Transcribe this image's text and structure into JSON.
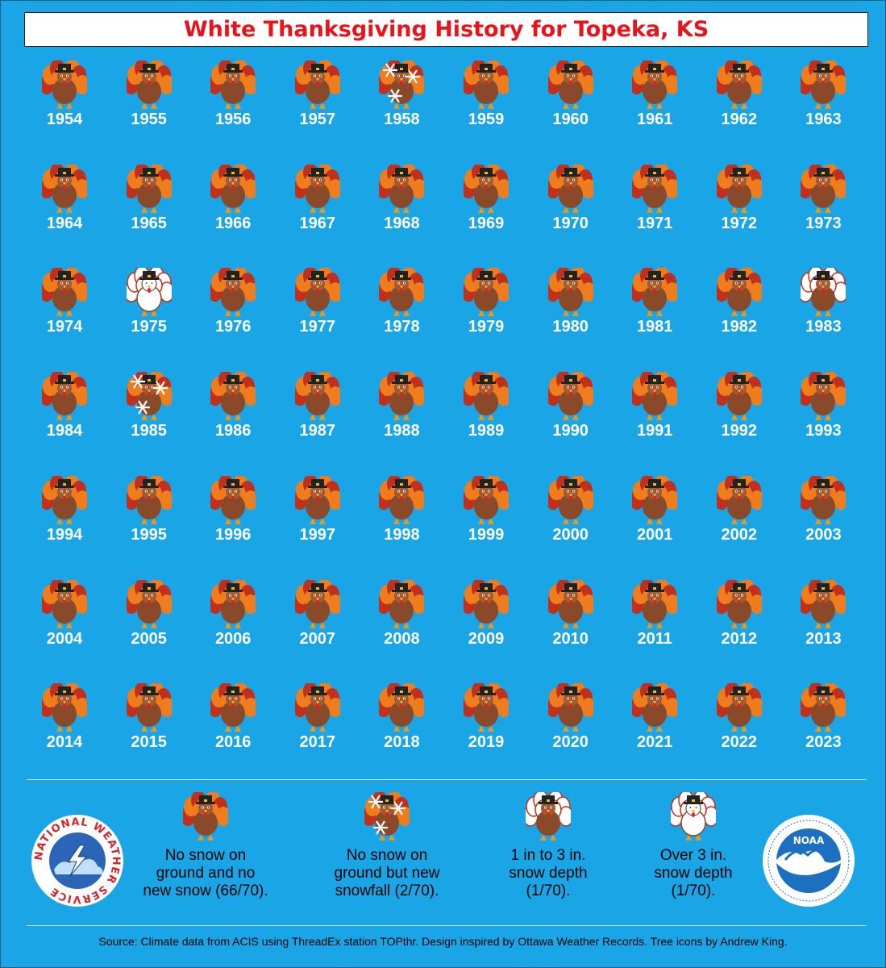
{
  "title": "White Thanksgiving History for Topeka, KS",
  "chart_data": {
    "type": "table",
    "title": "White Thanksgiving History for Topeka, KS",
    "columns": 10,
    "years": [
      1954,
      1955,
      1956,
      1957,
      1958,
      1959,
      1960,
      1961,
      1962,
      1963,
      1964,
      1965,
      1966,
      1967,
      1968,
      1969,
      1970,
      1971,
      1972,
      1973,
      1974,
      1975,
      1976,
      1977,
      1978,
      1979,
      1980,
      1981,
      1982,
      1983,
      1984,
      1985,
      1986,
      1987,
      1988,
      1989,
      1990,
      1991,
      1992,
      1993,
      1994,
      1995,
      1996,
      1997,
      1998,
      1999,
      2000,
      2001,
      2002,
      2003,
      2004,
      2005,
      2006,
      2007,
      2008,
      2009,
      2010,
      2011,
      2012,
      2013,
      2014,
      2015,
      2016,
      2017,
      2018,
      2019,
      2020,
      2021,
      2022,
      2023
    ],
    "categories": {
      "1958": "new_snow",
      "1985": "new_snow",
      "1975": "over_3in",
      "1983": "one_to_three"
    },
    "default_category": "none"
  },
  "legend": [
    {
      "key": "none",
      "line1": "No snow on",
      "line2": "ground and no",
      "line3": "new snow (66/70)."
    },
    {
      "key": "new_snow",
      "line1": "No snow on",
      "line2": "ground but new",
      "line3": "snowfall (2/70)."
    },
    {
      "key": "one_to_three",
      "line1": "1 in to 3 in.",
      "line2": "snow depth",
      "line3": "(1/70)."
    },
    {
      "key": "over_3in",
      "line1": "Over 3 in.",
      "line2": "snow depth",
      "line3": "(1/70)."
    }
  ],
  "logos": {
    "nws_text": "NATIONAL WEATHER SERVICE",
    "noaa_text": "NOAA"
  },
  "source": "Source: Climate data from ACIS using ThreadEx station TOPthr. Design inspired by Ottawa Weather Records. Tree icons by Andrew King.",
  "colors": {
    "background": "#1aa5e6",
    "title": "#e8141b",
    "turkey_body": "#8a4a2a",
    "feather_red": "#c0301c",
    "feather_orange": "#ef7d1e"
  }
}
